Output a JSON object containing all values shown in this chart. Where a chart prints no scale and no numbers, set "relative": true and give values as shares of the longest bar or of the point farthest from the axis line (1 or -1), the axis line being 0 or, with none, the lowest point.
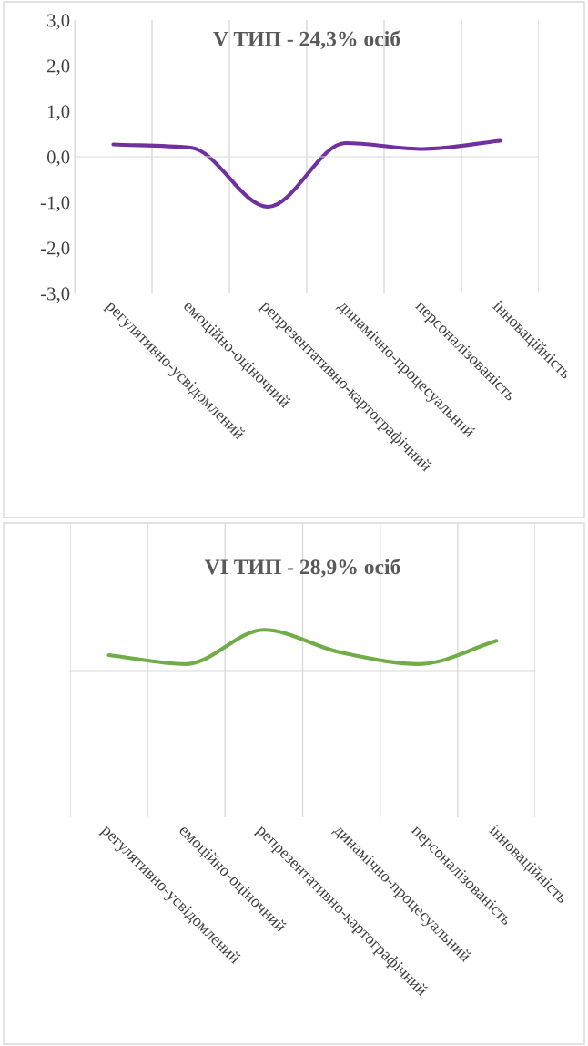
{
  "chart_data": [
    {
      "type": "line",
      "title": "V ТИП - 24,3% осіб",
      "categories": [
        "регулятивно-усвідомлений",
        "емоційно-оціночний",
        "репрезентативно-картографічний",
        "динамічно-процесуальний",
        "персоналізованість",
        "інноваційність"
      ],
      "series": [
        {
          "color": "#7030a0",
          "values": [
            0.27,
            0.2,
            -1.1,
            0.3,
            0.17,
            0.35
          ]
        }
      ],
      "ylim": [
        -3,
        3
      ],
      "yticks": [
        {
          "value": -3,
          "label": "-3,0"
        },
        {
          "value": -2,
          "label": "-2,0"
        },
        {
          "value": -1,
          "label": "-1,0"
        },
        {
          "value": 0,
          "label": "0,0"
        },
        {
          "value": 1,
          "label": "1,0"
        },
        {
          "value": 2,
          "label": "2,0"
        },
        {
          "value": 3,
          "label": "3,0"
        }
      ],
      "grid": "x",
      "marker": "none",
      "line_style": "solid"
    },
    {
      "type": "line",
      "title": "VI ТИП - 28,9% осіб",
      "categories": [
        "регулятивно-усвідомлений",
        "емоційно-оціночний",
        "репрезентативно-картографічний",
        "динамічно-процесуальний",
        "персоналізованість",
        "інноваційність"
      ],
      "series": [
        {
          "color": "#70ad47",
          "values": [
            0.38,
            0.16,
            1,
            0.44,
            0.16,
            0.73
          ]
        }
      ],
      "relative": true,
      "grid": "x",
      "marker": "none",
      "line_style": "solid",
      "tick_labels": "x"
    }
  ]
}
